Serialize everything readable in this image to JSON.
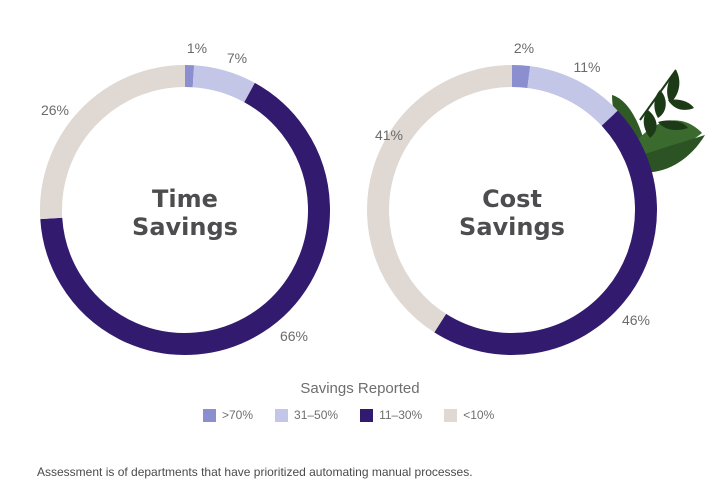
{
  "chart_data": [
    {
      "type": "pie",
      "donut": true,
      "title": "Time Savings",
      "title_lines": [
        "Time",
        "Savings"
      ],
      "categories": [
        ">70%",
        "31–50%",
        "11–30%",
        "<10%"
      ],
      "values": [
        1,
        7,
        66,
        26
      ],
      "labels": [
        "1%",
        "7%",
        "66%",
        "26%"
      ]
    },
    {
      "type": "pie",
      "donut": true,
      "title": "Cost Savings",
      "title_lines": [
        "Cost",
        "Savings"
      ],
      "categories": [
        ">70%",
        "31–50%",
        "11–30%",
        "<10%"
      ],
      "values": [
        2,
        11,
        46,
        41
      ],
      "labels": [
        "2%",
        "11%",
        "46%",
        "41%"
      ]
    }
  ],
  "legend": {
    "title": "Savings Reported",
    "items": [
      {
        "label": ">70%",
        "color": "#8b8fd0"
      },
      {
        "label": "31–50%",
        "color": "#c3c6e6"
      },
      {
        "label": "11–30%",
        "color": "#321b6e"
      },
      {
        "label": "<10%",
        "color": "#e0d8d2"
      }
    ],
    "placement": "bottom"
  },
  "footnote": "Assessment is of departments that have prioritized automating manual processes."
}
